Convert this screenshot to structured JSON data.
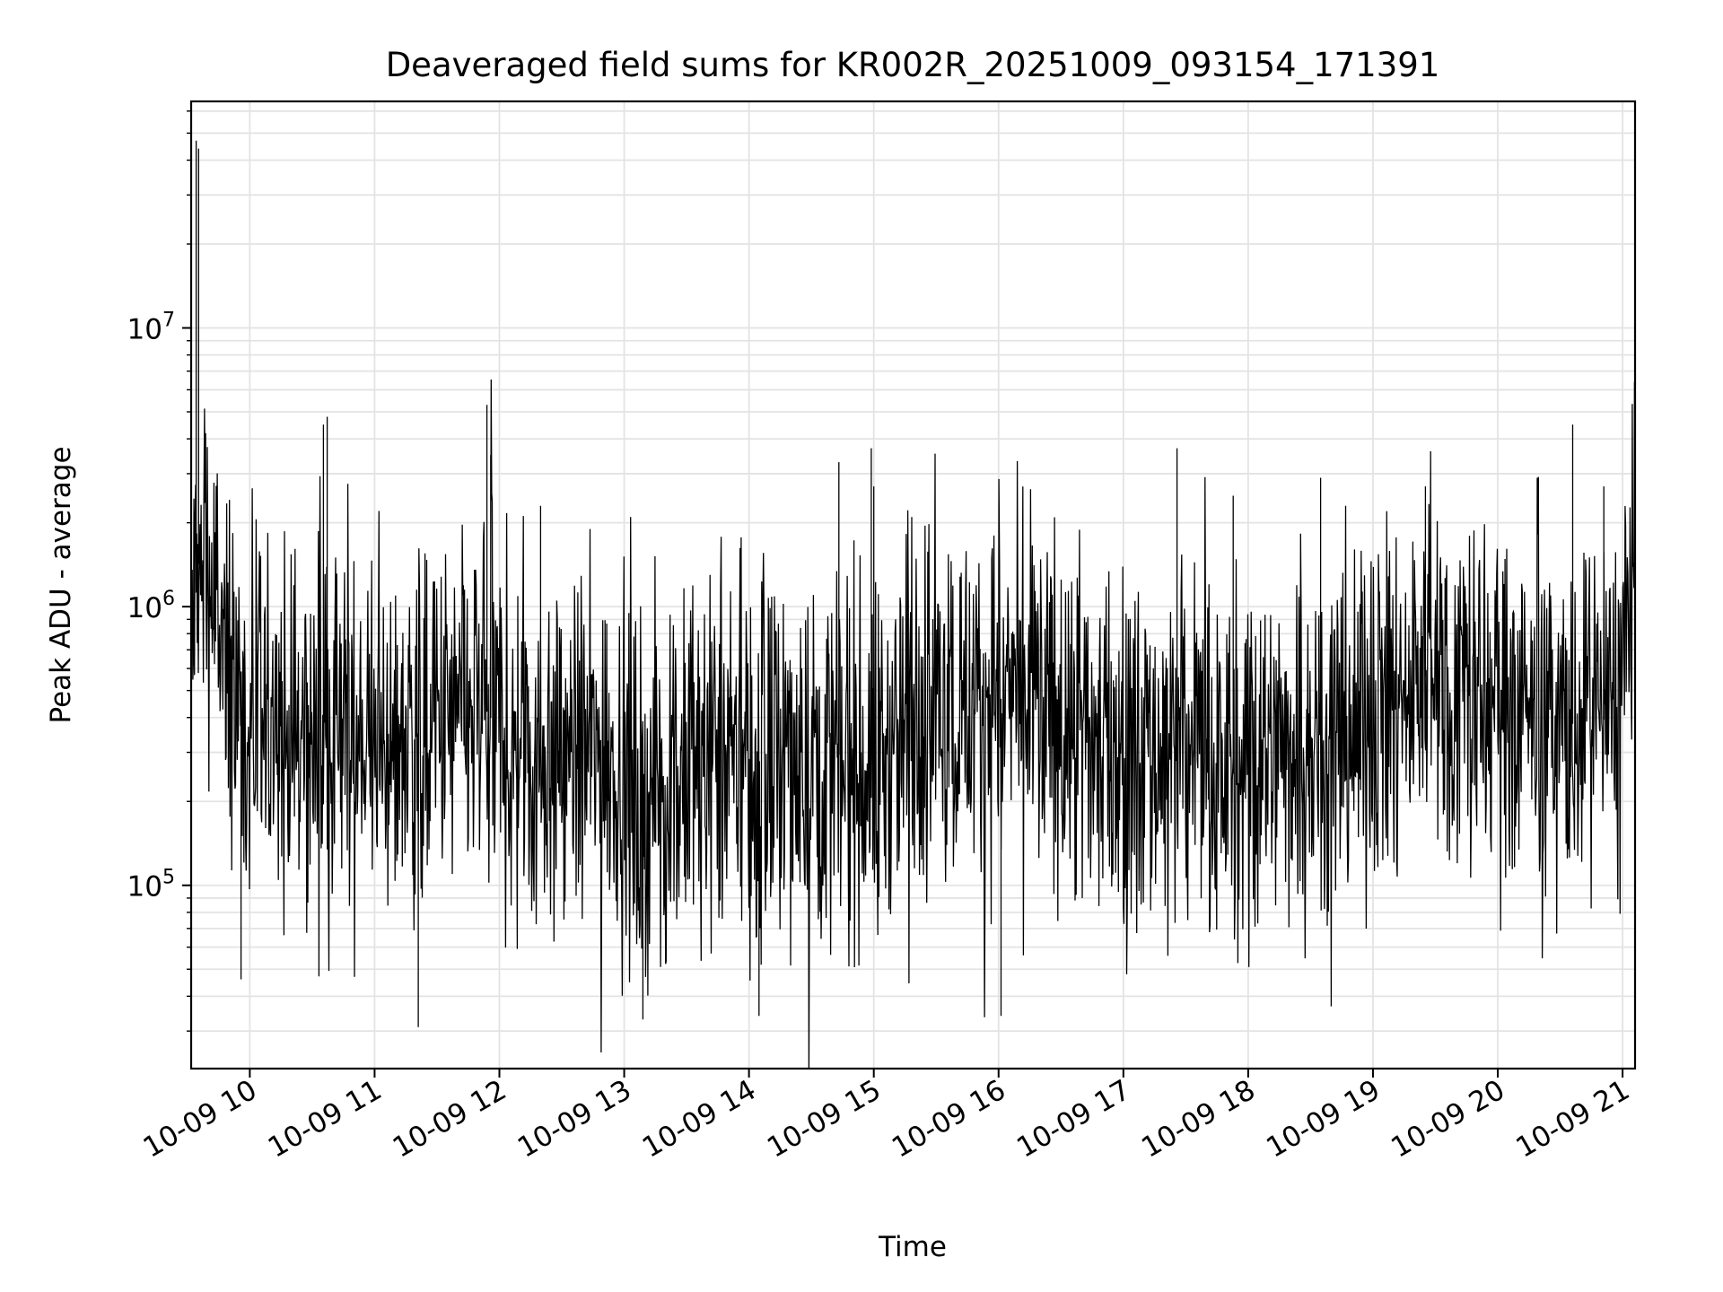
{
  "chart_data": {
    "type": "line",
    "title": "Deaveraged field sums for KR002R_20251009_093154_171391",
    "xlabel": "Time",
    "ylabel": "Peak ADU - average",
    "yscale": "log",
    "ylim": [
      22000,
      65000000
    ],
    "xlim_hours": [
      9.53,
      21.1
    ],
    "grid": true,
    "x_ticks": [
      {
        "value": 10,
        "label": "10-09 10"
      },
      {
        "value": 11,
        "label": "10-09 11"
      },
      {
        "value": 12,
        "label": "10-09 12"
      },
      {
        "value": 13,
        "label": "10-09 13"
      },
      {
        "value": 14,
        "label": "10-09 14"
      },
      {
        "value": 15,
        "label": "10-09 15"
      },
      {
        "value": 16,
        "label": "10-09 16"
      },
      {
        "value": 17,
        "label": "10-09 17"
      },
      {
        "value": 18,
        "label": "10-09 18"
      },
      {
        "value": 19,
        "label": "10-09 19"
      },
      {
        "value": 20,
        "label": "10-09 20"
      },
      {
        "value": 21,
        "label": "10-09 21"
      }
    ],
    "y_ticks": [
      {
        "value": 100000,
        "base": "10",
        "exp": "5"
      },
      {
        "value": 1000000,
        "base": "10",
        "exp": "6"
      },
      {
        "value": 10000000,
        "base": "10",
        "exp": "7"
      }
    ],
    "series": [
      {
        "name": "Peak ADU - average",
        "color": "#000000",
        "baseline": [
          [
            9.53,
            700000
          ],
          [
            9.6,
            1600000
          ],
          [
            9.7,
            1100000
          ],
          [
            9.8,
            550000
          ],
          [
            10.0,
            340000
          ],
          [
            10.5,
            330000
          ],
          [
            11.0,
            330000
          ],
          [
            11.5,
            360000
          ],
          [
            11.9,
            420000
          ],
          [
            12.1,
            300000
          ],
          [
            12.5,
            290000
          ],
          [
            12.9,
            300000
          ],
          [
            13.1,
            200000
          ],
          [
            13.4,
            220000
          ],
          [
            13.7,
            280000
          ],
          [
            14.0,
            260000
          ],
          [
            14.4,
            270000
          ],
          [
            14.8,
            300000
          ],
          [
            15.0,
            260000
          ],
          [
            15.2,
            330000
          ],
          [
            15.4,
            480000
          ],
          [
            15.8,
            430000
          ],
          [
            16.0,
            470000
          ],
          [
            16.3,
            430000
          ],
          [
            16.7,
            330000
          ],
          [
            17.2,
            300000
          ],
          [
            17.6,
            310000
          ],
          [
            18.0,
            230000
          ],
          [
            18.3,
            350000
          ],
          [
            18.6,
            330000
          ],
          [
            19.0,
            400000
          ],
          [
            19.4,
            560000
          ],
          [
            19.7,
            560000
          ],
          [
            20.0,
            430000
          ],
          [
            20.4,
            380000
          ],
          [
            20.8,
            380000
          ],
          [
            20.95,
            420000
          ],
          [
            21.05,
            1100000
          ],
          [
            21.1,
            1300000
          ]
        ],
        "spikes": [
          {
            "x": 9.57,
            "y": 47000000
          },
          {
            "x": 9.59,
            "y": 44000000
          },
          {
            "x": 10.59,
            "y": 4500000
          },
          {
            "x": 10.62,
            "y": 4800000
          },
          {
            "x": 11.9,
            "y": 5300000
          },
          {
            "x": 11.93,
            "y": 3500000
          },
          {
            "x": 12.33,
            "y": 2300000
          },
          {
            "x": 14.72,
            "y": 3300000
          },
          {
            "x": 14.98,
            "y": 3700000
          },
          {
            "x": 15.0,
            "y": 2700000
          },
          {
            "x": 17.43,
            "y": 3700000
          },
          {
            "x": 17.88,
            "y": 2500000
          },
          {
            "x": 18.58,
            "y": 2900000
          },
          {
            "x": 19.42,
            "y": 2700000
          },
          {
            "x": 20.6,
            "y": 4500000
          },
          {
            "x": 20.85,
            "y": 2700000
          },
          {
            "x": 11.35,
            "y": 31000
          },
          {
            "x": 13.15,
            "y": 33000
          },
          {
            "x": 14.08,
            "y": 34000
          },
          {
            "x": 16.02,
            "y": 34000
          },
          {
            "x": 9.93,
            "y": 46000
          }
        ]
      }
    ]
  }
}
